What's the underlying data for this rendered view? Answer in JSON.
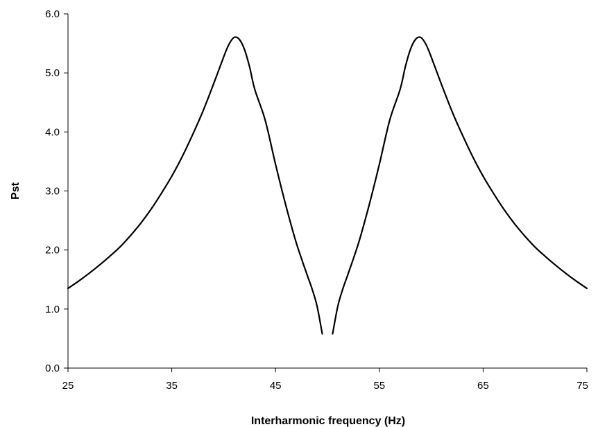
{
  "chart_data": {
    "type": "line",
    "title": "",
    "xlabel": "Interharmonic frequency (Hz)",
    "ylabel": "Pst",
    "xlim": [
      25,
      75
    ],
    "ylim": [
      0,
      6
    ],
    "xticks": [
      25,
      35,
      45,
      55,
      65,
      75
    ],
    "xtick_labels": [
      "25",
      "35",
      "45",
      "55",
      "65",
      "75"
    ],
    "yticks": [
      0,
      1,
      2,
      3,
      4,
      5,
      6
    ],
    "ytick_labels": [
      "0.0",
      "1.0",
      "2.0",
      "3.0",
      "4.0",
      "5.0",
      "6.0"
    ],
    "grid": false,
    "legend": "none",
    "series": [
      {
        "color": "#000000",
        "segments": [
          [
            [
              25,
              1.35
            ],
            [
              26,
              1.47
            ],
            [
              27,
              1.6
            ],
            [
              28,
              1.74
            ],
            [
              29,
              1.89
            ],
            [
              30,
              2.05
            ],
            [
              31,
              2.24
            ],
            [
              32,
              2.45
            ],
            [
              33,
              2.69
            ],
            [
              34,
              2.96
            ],
            [
              35,
              3.25
            ],
            [
              36,
              3.58
            ],
            [
              37,
              3.95
            ],
            [
              38,
              4.35
            ],
            [
              39,
              4.8
            ],
            [
              40,
              5.27
            ],
            [
              40.5,
              5.48
            ],
            [
              41,
              5.6
            ],
            [
              41.5,
              5.57
            ],
            [
              42,
              5.4
            ],
            [
              42.5,
              5.1
            ],
            [
              43,
              4.72
            ],
            [
              44,
              4.2
            ],
            [
              45,
              3.45
            ],
            [
              46,
              2.75
            ],
            [
              47,
              2.12
            ],
            [
              48,
              1.6
            ],
            [
              48.5,
              1.35
            ],
            [
              49,
              1.05
            ],
            [
              49.5,
              0.58
            ]
          ],
          [
            [
              50.5,
              0.58
            ],
            [
              51,
              1.05
            ],
            [
              51.5,
              1.35
            ],
            [
              52,
              1.6
            ],
            [
              53,
              2.12
            ],
            [
              54,
              2.75
            ],
            [
              55,
              3.45
            ],
            [
              56,
              4.2
            ],
            [
              57,
              4.72
            ],
            [
              57.5,
              5.1
            ],
            [
              58,
              5.4
            ],
            [
              58.5,
              5.57
            ],
            [
              59,
              5.6
            ],
            [
              59.5,
              5.48
            ],
            [
              60,
              5.27
            ],
            [
              61,
              4.8
            ],
            [
              62,
              4.35
            ],
            [
              63,
              3.95
            ],
            [
              64,
              3.58
            ],
            [
              65,
              3.25
            ],
            [
              66,
              2.96
            ],
            [
              67,
              2.69
            ],
            [
              68,
              2.45
            ],
            [
              69,
              2.24
            ],
            [
              70,
              2.05
            ],
            [
              71,
              1.89
            ],
            [
              72,
              1.74
            ],
            [
              73,
              1.6
            ],
            [
              74,
              1.47
            ],
            [
              75,
              1.35
            ]
          ]
        ]
      }
    ]
  }
}
